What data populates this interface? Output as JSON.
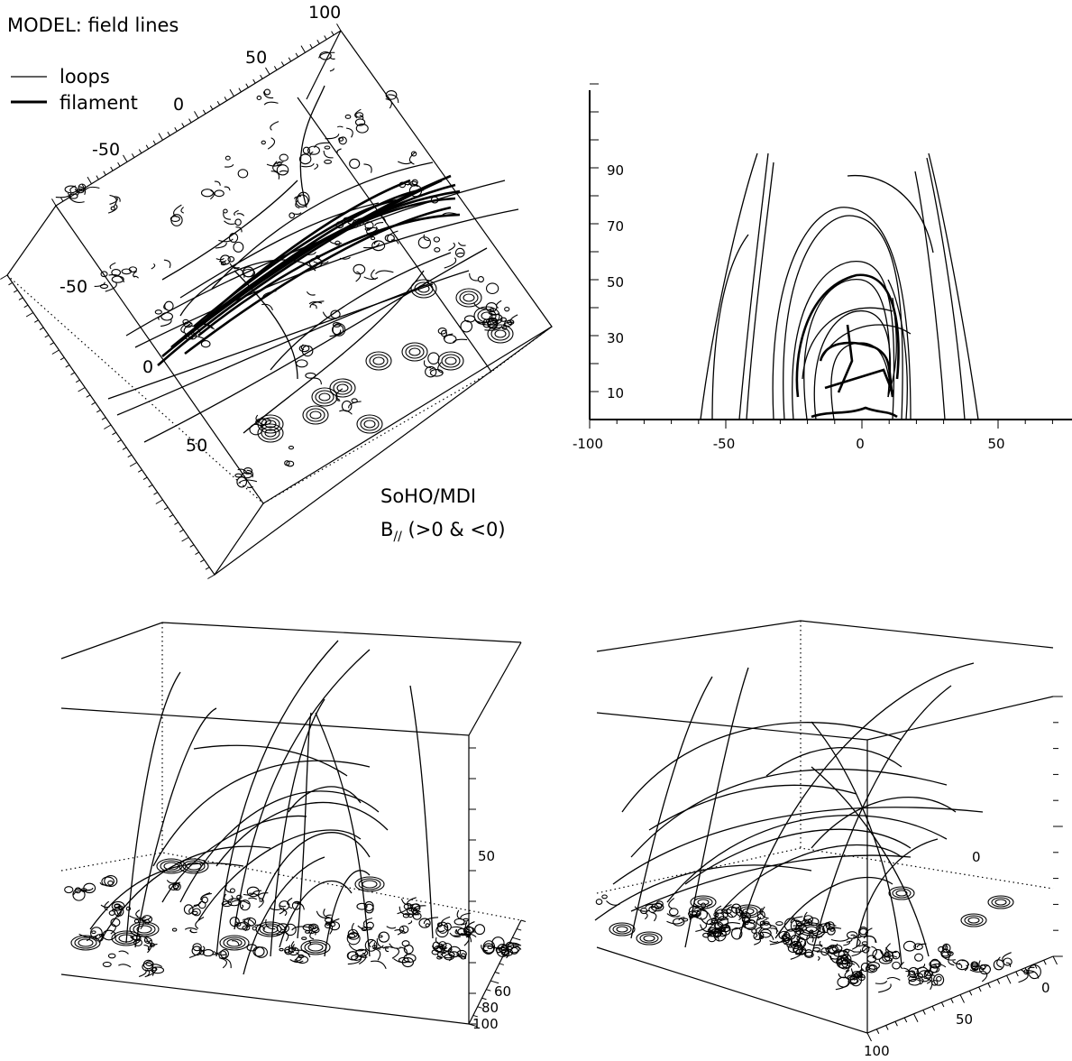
{
  "panel1": {
    "title": "MODEL: field lines",
    "legend": [
      {
        "label": "loops",
        "style": "thin"
      },
      {
        "label": "filament",
        "style": "thick"
      }
    ],
    "top_ticks": [
      "100",
      "50",
      "0",
      "-50"
    ],
    "left_ticks": [
      "-50",
      "0",
      "50"
    ],
    "source_line1": "SoHO/MDI",
    "source_line2_main": "B",
    "source_line2_sub": "//",
    "source_line2_rest": " (>0  & <0)"
  },
  "panel2": {
    "x_ticks": [
      "-100",
      "-50",
      "0",
      "50"
    ],
    "y_ticks": [
      "90",
      "70",
      "50",
      "30",
      "10"
    ]
  },
  "panel3": {
    "z_tick": "50",
    "y_ticks": [
      "60",
      "80",
      "100"
    ]
  },
  "panel4": {
    "ticks": [
      "0",
      "0",
      "50",
      "100"
    ]
  }
}
